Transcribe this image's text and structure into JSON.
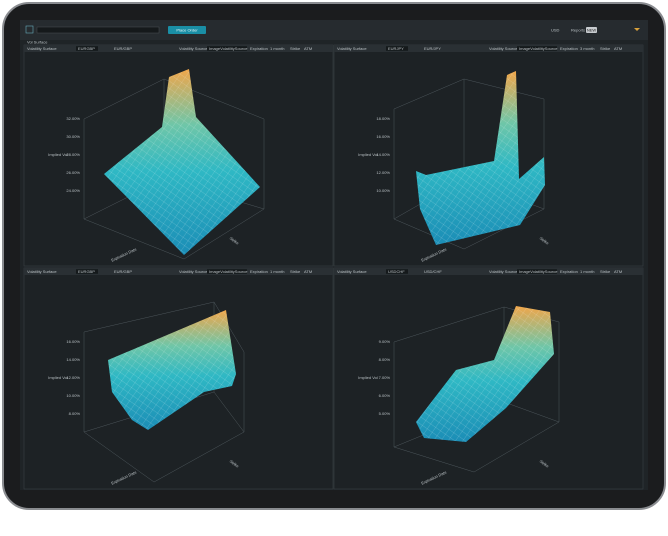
{
  "toolbar": {
    "button": "Place Order",
    "currency": "USD",
    "reports_label": "Reports",
    "reports_badge": "NEW",
    "section": "Vol Surface"
  },
  "panels": [
    {
      "title": "Volatility Surface",
      "pair": "EURGBP",
      "pair_full": "EUR/GBP",
      "source_label": "Volatility Source",
      "source": "ImageVolatilitySource",
      "expiration_label": "Expiration",
      "expiration": "1 month",
      "strike_label": "Strike",
      "strike": "ATM",
      "z_label": "Implied Vol",
      "z_ticks": [
        "32.00%",
        "30.00%",
        "28.00%",
        "26.00%",
        "24.00%"
      ],
      "x_label": "Expiration Date",
      "y_label": "Strike"
    },
    {
      "title": "Volatility Surface",
      "pair": "EURJPY",
      "pair_full": "EUR/JPY",
      "source_label": "Volatility Source",
      "source": "ImageVolatilitySource",
      "expiration_label": "Expiration",
      "expiration": "3 month",
      "strike_label": "Strike",
      "strike": "ATM",
      "z_label": "Implied Vol",
      "z_ticks": [
        "18.00%",
        "16.00%",
        "14.00%",
        "12.00%",
        "10.00%"
      ],
      "x_label": "Expiration Date",
      "y_label": "Strike"
    },
    {
      "title": "Volatility Surface",
      "pair": "EURGBP",
      "pair_full": "EUR/GBP",
      "source_label": "Volatility Source",
      "source": "ImageVolatilitySource",
      "expiration_label": "Expiration",
      "expiration": "1 month",
      "strike_label": "Strike",
      "strike": "ATM",
      "z_label": "Implied Vol",
      "z_ticks": [
        "16.00%",
        "14.00%",
        "12.00%",
        "10.00%",
        "8.00%"
      ],
      "x_label": "Expiration Date",
      "y_label": "Strike"
    },
    {
      "title": "Volatility Surface",
      "pair": "USDCHF",
      "pair_full": "USD/CHF",
      "source_label": "Volatility Source",
      "source": "ImageVolatilitySource",
      "expiration_label": "Expiration",
      "expiration": "1 month",
      "strike_label": "Strike",
      "strike": "ATM",
      "z_label": "Implied Vol",
      "z_ticks": [
        "9.00%",
        "8.00%",
        "7.00%",
        "6.00%",
        "5.00%"
      ],
      "x_label": "Expiration Date",
      "y_label": "Strike"
    }
  ]
}
